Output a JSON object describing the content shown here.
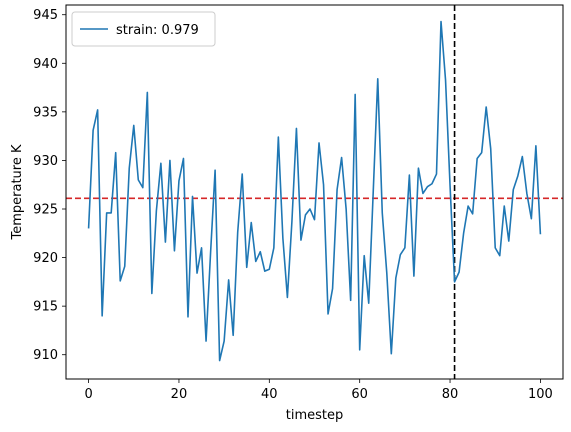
{
  "chart_data": {
    "type": "line",
    "xlabel": "timestep",
    "ylabel": "Temperature K",
    "xlim": [
      -5,
      105
    ],
    "ylim": [
      907.5,
      946.0
    ],
    "xticks": [
      0,
      20,
      40,
      60,
      80,
      100
    ],
    "yticks": [
      910,
      915,
      920,
      925,
      930,
      935,
      940,
      945
    ],
    "grid": false,
    "legend_position": "top-left",
    "series": [
      {
        "name": "strain: 0.979",
        "color": "#1f77b4",
        "x": [
          0,
          1,
          2,
          3,
          4,
          5,
          6,
          7,
          8,
          9,
          10,
          11,
          12,
          13,
          14,
          15,
          16,
          17,
          18,
          19,
          20,
          21,
          22,
          23,
          24,
          25,
          26,
          27,
          28,
          29,
          30,
          31,
          32,
          33,
          34,
          35,
          36,
          37,
          38,
          39,
          40,
          41,
          42,
          43,
          44,
          45,
          46,
          47,
          48,
          49,
          50,
          51,
          52,
          53,
          54,
          55,
          56,
          57,
          58,
          59,
          60,
          61,
          62,
          63,
          64,
          65,
          66,
          67,
          68,
          69,
          70,
          71,
          72,
          73,
          74,
          75,
          76,
          77,
          78,
          79,
          80,
          81,
          82,
          83,
          84,
          85,
          86,
          87,
          88,
          89,
          90,
          91,
          92,
          93,
          94,
          95,
          96,
          97,
          98,
          99,
          100
        ],
        "values": [
          923.0,
          933.1,
          935.2,
          914.0,
          924.6,
          924.6,
          930.8,
          917.6,
          919.1,
          929.2,
          933.6,
          928.0,
          927.2,
          937.0,
          916.3,
          924.8,
          929.7,
          921.6,
          930.0,
          920.7,
          927.9,
          930.2,
          913.9,
          926.3,
          918.4,
          921.0,
          911.4,
          920.5,
          929.0,
          909.4,
          911.4,
          917.7,
          912.0,
          922.6,
          928.6,
          919.0,
          923.6,
          919.6,
          920.6,
          918.6,
          918.8,
          921.0,
          932.4,
          922.0,
          915.9,
          923.7,
          933.3,
          921.8,
          924.4,
          925.0,
          923.9,
          931.8,
          927.5,
          914.2,
          916.8,
          927.0,
          930.3,
          925.0,
          915.6,
          936.8,
          910.5,
          920.2,
          915.3,
          926.8,
          938.4,
          924.6,
          918.4,
          910.1,
          917.9,
          920.3,
          921.0,
          928.5,
          918.1,
          929.2,
          926.6,
          927.3,
          927.6,
          928.6,
          944.3,
          938.3,
          927.4,
          917.5,
          918.5,
          922.5,
          925.3,
          924.5,
          930.2,
          930.8,
          935.5,
          931.2,
          921.0,
          920.2,
          925.3,
          921.7,
          927.0,
          928.4,
          930.4,
          926.6,
          924.0,
          931.5,
          922.4
        ]
      }
    ],
    "reference_lines": [
      {
        "orientation": "horizontal",
        "value": 926.1,
        "color": "#d62728",
        "style": "dashed"
      },
      {
        "orientation": "vertical",
        "value": 81,
        "color": "#000000",
        "style": "dashed"
      }
    ]
  }
}
